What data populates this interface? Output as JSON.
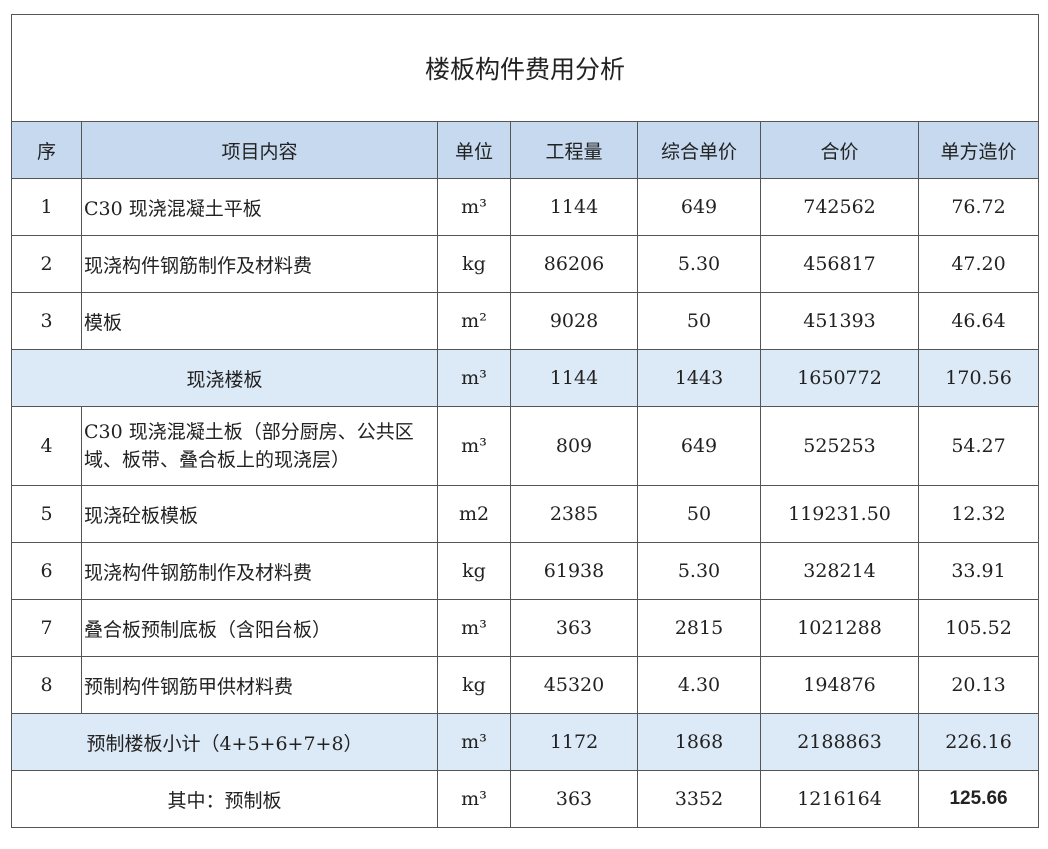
{
  "title": "楼板构件费用分析",
  "headers": [
    "序",
    "项目内容",
    "单位",
    "工程量",
    "综合单价",
    "合价",
    "单方造价"
  ],
  "rows": [
    {
      "no": "1",
      "name": "C30 现浇混凝土平板",
      "unit": "m³",
      "qty": "1144",
      "price": "649",
      "total": "742562",
      "unit_cost": "76.72"
    },
    {
      "no": "2",
      "name": "现浇构件钢筋制作及材料费",
      "unit": "kg",
      "qty": "86206",
      "price": "5.30",
      "total": "456817",
      "unit_cost": "47.20"
    },
    {
      "no": "3",
      "name": "模板",
      "unit": "m²",
      "qty": "9028",
      "price": "50",
      "total": "451393",
      "unit_cost": "46.64"
    },
    {
      "subtotal": true,
      "name": "现浇楼板",
      "unit": "m³",
      "qty": "1144",
      "price": "1443",
      "total": "1650772",
      "unit_cost": "170.56"
    },
    {
      "no": "4",
      "name": "C30 现浇混凝土板（部分厨房、公共区域、板带、叠合板上的现浇层）",
      "unit": "m³",
      "qty": "809",
      "price": "649",
      "total": "525253",
      "unit_cost": "54.27"
    },
    {
      "no": "5",
      "name": "现浇砼板模板",
      "unit": "m2",
      "qty": "2385",
      "price": "50",
      "total": "119231.50",
      "unit_cost": "12.32"
    },
    {
      "no": "6",
      "name": "现浇构件钢筋制作及材料费",
      "unit": "kg",
      "qty": "61938",
      "price": "5.30",
      "total": "328214",
      "unit_cost": "33.91"
    },
    {
      "no": "7",
      "name": "叠合板预制底板（含阳台板）",
      "unit": "m³",
      "qty": "363",
      "price": "2815",
      "total": "1021288",
      "unit_cost": "105.52"
    },
    {
      "no": "8",
      "name": "预制构件钢筋甲供材料费",
      "unit": "kg",
      "qty": "45320",
      "price": "4.30",
      "total": "194876",
      "unit_cost": "20.13"
    },
    {
      "subtotal": true,
      "name": "预制楼板小计（4+5+6+7+8）",
      "unit": "m³",
      "qty": "1172",
      "price": "1868",
      "total": "2188863",
      "unit_cost": "226.16"
    },
    {
      "plain_merged": true,
      "name": "其中：预制板",
      "unit": "m³",
      "qty": "363",
      "price": "3352",
      "total": "1216164",
      "unit_cost": "125.66"
    }
  ]
}
